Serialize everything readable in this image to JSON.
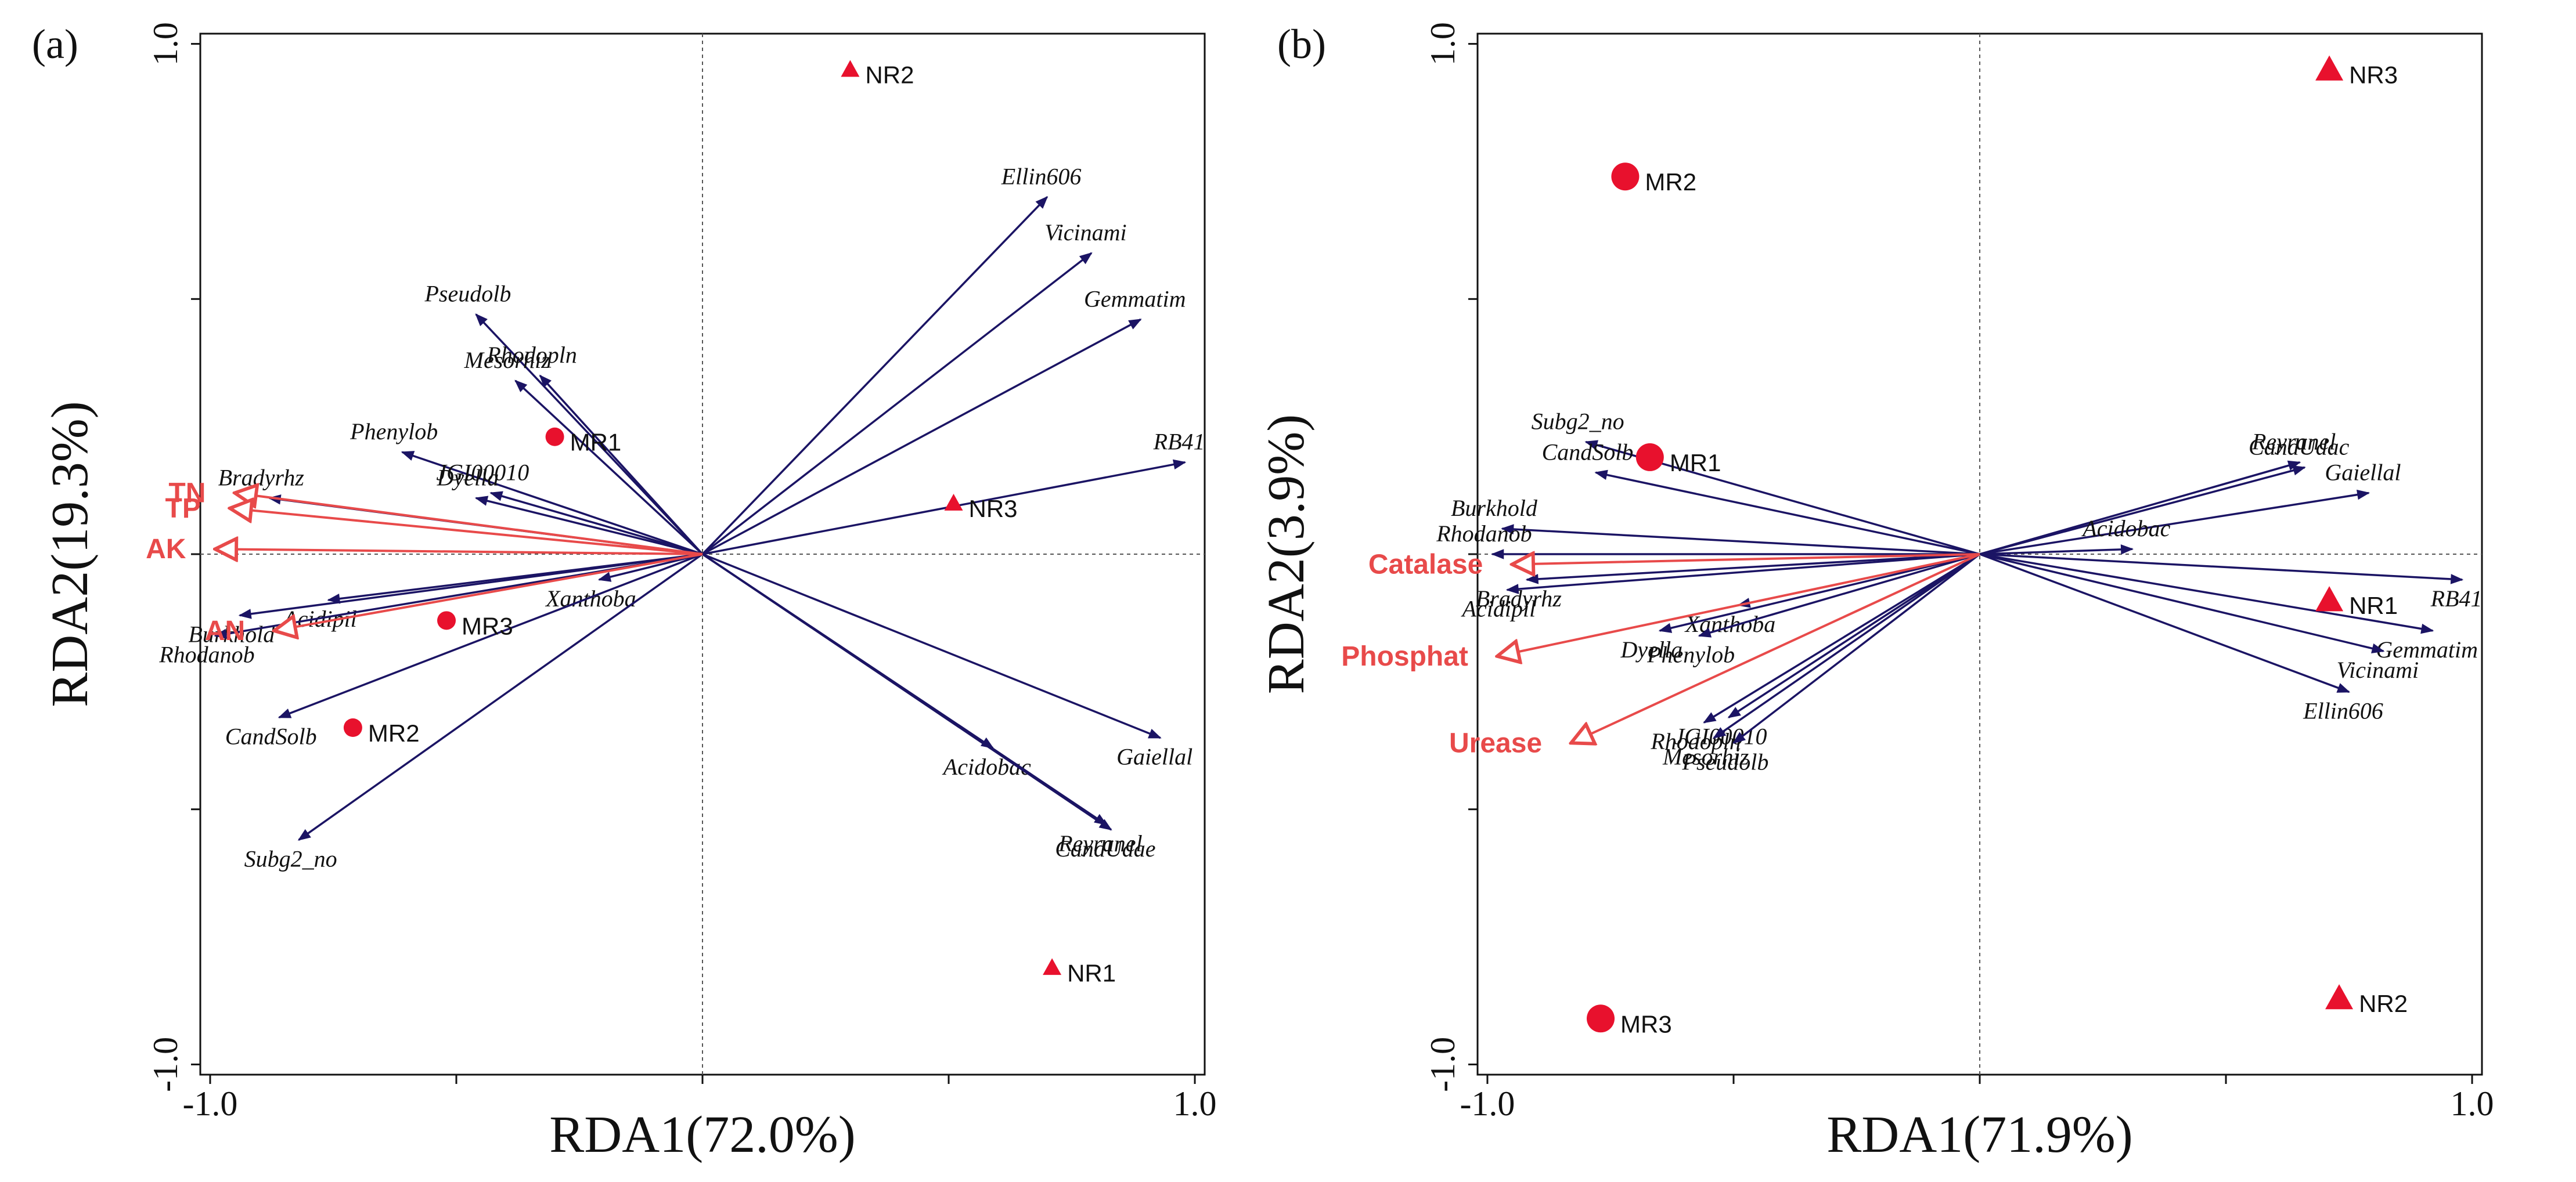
{
  "figure": {
    "colors": {
      "species": "#1b1464",
      "env": "#e84a4a",
      "site": "#e8112d",
      "axis": "#111111",
      "guide": "#555555"
    }
  },
  "chart_data": [
    {
      "type": "scatter",
      "subtype": "rda-triplot",
      "panel_label": "(a)",
      "xlabel": "RDA1(72.0%)",
      "ylabel": "RDA2(19.3%)",
      "xlim": [
        -1.02,
        1.02
      ],
      "ylim": [
        -1.02,
        1.02
      ],
      "xticks": [
        "-1.0",
        "1.0"
      ],
      "yticks": [
        "1.0",
        "-1.0"
      ],
      "species_arrows": [
        {
          "name": "Ellin606",
          "x": 0.7,
          "y": 0.7
        },
        {
          "name": "Vicinami",
          "x": 0.79,
          "y": 0.59
        },
        {
          "name": "Gemmatim",
          "x": 0.89,
          "y": 0.46
        },
        {
          "name": "RB41",
          "x": 0.98,
          "y": 0.18
        },
        {
          "name": "Acidobac",
          "x": 0.59,
          "y": -0.38
        },
        {
          "name": "Gaiellal",
          "x": 0.93,
          "y": -0.36
        },
        {
          "name": "Reyranel",
          "x": 0.82,
          "y": -0.53
        },
        {
          "name": "CandUdae",
          "x": 0.83,
          "y": -0.54
        },
        {
          "name": "Pseudolb",
          "x": -0.46,
          "y": 0.47
        },
        {
          "name": "Rhodopln",
          "x": -0.33,
          "y": 0.35
        },
        {
          "name": "Mesorhiz",
          "x": -0.38,
          "y": 0.34
        },
        {
          "name": "Phenylob",
          "x": -0.61,
          "y": 0.2
        },
        {
          "name": "JGI00010",
          "x": -0.43,
          "y": 0.12
        },
        {
          "name": "Dyella",
          "x": -0.46,
          "y": 0.11
        },
        {
          "name": "Bradyrhz",
          "x": -0.88,
          "y": 0.11
        },
        {
          "name": "Acidipil",
          "x": -0.76,
          "y": -0.09
        },
        {
          "name": "Xanthoba",
          "x": -0.21,
          "y": -0.05
        },
        {
          "name": "Burkhold",
          "x": -0.94,
          "y": -0.12
        },
        {
          "name": "Rhodanob",
          "x": -0.99,
          "y": -0.16
        },
        {
          "name": "CandSolb",
          "x": -0.86,
          "y": -0.32
        },
        {
          "name": "Subg2_no",
          "x": -0.82,
          "y": -0.56
        }
      ],
      "env_arrows": [
        {
          "name": "TN",
          "x": -0.95,
          "y": 0.12
        },
        {
          "name": "TP",
          "x": -0.96,
          "y": 0.09
        },
        {
          "name": "AK",
          "x": -0.99,
          "y": 0.01
        },
        {
          "name": "AN",
          "x": -0.87,
          "y": -0.15
        }
      ],
      "sites": [
        {
          "name": "NR2",
          "x": 0.3,
          "y": 0.95,
          "shape": "triangle"
        },
        {
          "name": "NR3",
          "x": 0.51,
          "y": 0.1,
          "shape": "triangle"
        },
        {
          "name": "NR1",
          "x": 0.71,
          "y": -0.81,
          "shape": "triangle"
        },
        {
          "name": "MR1",
          "x": -0.3,
          "y": 0.23,
          "shape": "circle"
        },
        {
          "name": "MR3",
          "x": -0.52,
          "y": -0.13,
          "shape": "circle"
        },
        {
          "name": "MR2",
          "x": -0.71,
          "y": -0.34,
          "shape": "circle"
        }
      ]
    },
    {
      "type": "scatter",
      "subtype": "rda-triplot",
      "panel_label": "(b)",
      "xlabel": "RDA1(71.9%)",
      "ylabel": "RDA2(3.9%)",
      "xlim": [
        -1.02,
        1.02
      ],
      "ylim": [
        -1.02,
        1.02
      ],
      "xticks": [
        "-1.0",
        "1.0"
      ],
      "yticks": [
        "1.0",
        "-1.0"
      ],
      "species_arrows": [
        {
          "name": "Reyranel",
          "x": 0.65,
          "y": 0.18
        },
        {
          "name": "CandUdac",
          "x": 0.66,
          "y": 0.17
        },
        {
          "name": "Gaiellal",
          "x": 0.79,
          "y": 0.12
        },
        {
          "name": "Acidobac",
          "x": 0.31,
          "y": 0.01
        },
        {
          "name": "RB41",
          "x": 0.98,
          "y": -0.05
        },
        {
          "name": "Gemmatim",
          "x": 0.92,
          "y": -0.15
        },
        {
          "name": "Vicinami",
          "x": 0.82,
          "y": -0.19
        },
        {
          "name": "Ellin606",
          "x": 0.75,
          "y": -0.27
        },
        {
          "name": "Subg2_no",
          "x": -0.8,
          "y": 0.22
        },
        {
          "name": "CandSolb",
          "x": -0.78,
          "y": 0.16
        },
        {
          "name": "Burkhold",
          "x": -0.97,
          "y": 0.05
        },
        {
          "name": "Rhodanob",
          "x": -0.99,
          "y": 0.0
        },
        {
          "name": "Acidipil",
          "x": -0.96,
          "y": -0.07
        },
        {
          "name": "Bradyrhz",
          "x": -0.92,
          "y": -0.05
        },
        {
          "name": "Xanthoba",
          "x": -0.49,
          "y": -0.1
        },
        {
          "name": "Dyella",
          "x": -0.65,
          "y": -0.15
        },
        {
          "name": "Phenylob",
          "x": -0.57,
          "y": -0.16
        },
        {
          "name": "JGI00010",
          "x": -0.51,
          "y": -0.32
        },
        {
          "name": "Rhodopln",
          "x": -0.56,
          "y": -0.33
        },
        {
          "name": "Mesorhiz",
          "x": -0.54,
          "y": -0.36
        },
        {
          "name": "Pseudolb",
          "x": -0.5,
          "y": -0.37
        }
      ],
      "env_arrows": [
        {
          "name": "Catalase",
          "x": -0.95,
          "y": -0.02
        },
        {
          "name": "Phosphat",
          "x": -0.98,
          "y": -0.2
        },
        {
          "name": "Urease",
          "x": -0.83,
          "y": -0.37
        }
      ],
      "sites": [
        {
          "name": "NR3",
          "x": 0.71,
          "y": 0.95,
          "shape": "triangle"
        },
        {
          "name": "NR1",
          "x": 0.71,
          "y": -0.09,
          "shape": "triangle"
        },
        {
          "name": "NR2",
          "x": 0.73,
          "y": -0.87,
          "shape": "triangle"
        },
        {
          "name": "MR2",
          "x": -0.72,
          "y": 0.74,
          "shape": "circle"
        },
        {
          "name": "MR1",
          "x": -0.67,
          "y": 0.19,
          "shape": "circle"
        },
        {
          "name": "MR3",
          "x": -0.77,
          "y": -0.91,
          "shape": "circle"
        }
      ]
    }
  ]
}
